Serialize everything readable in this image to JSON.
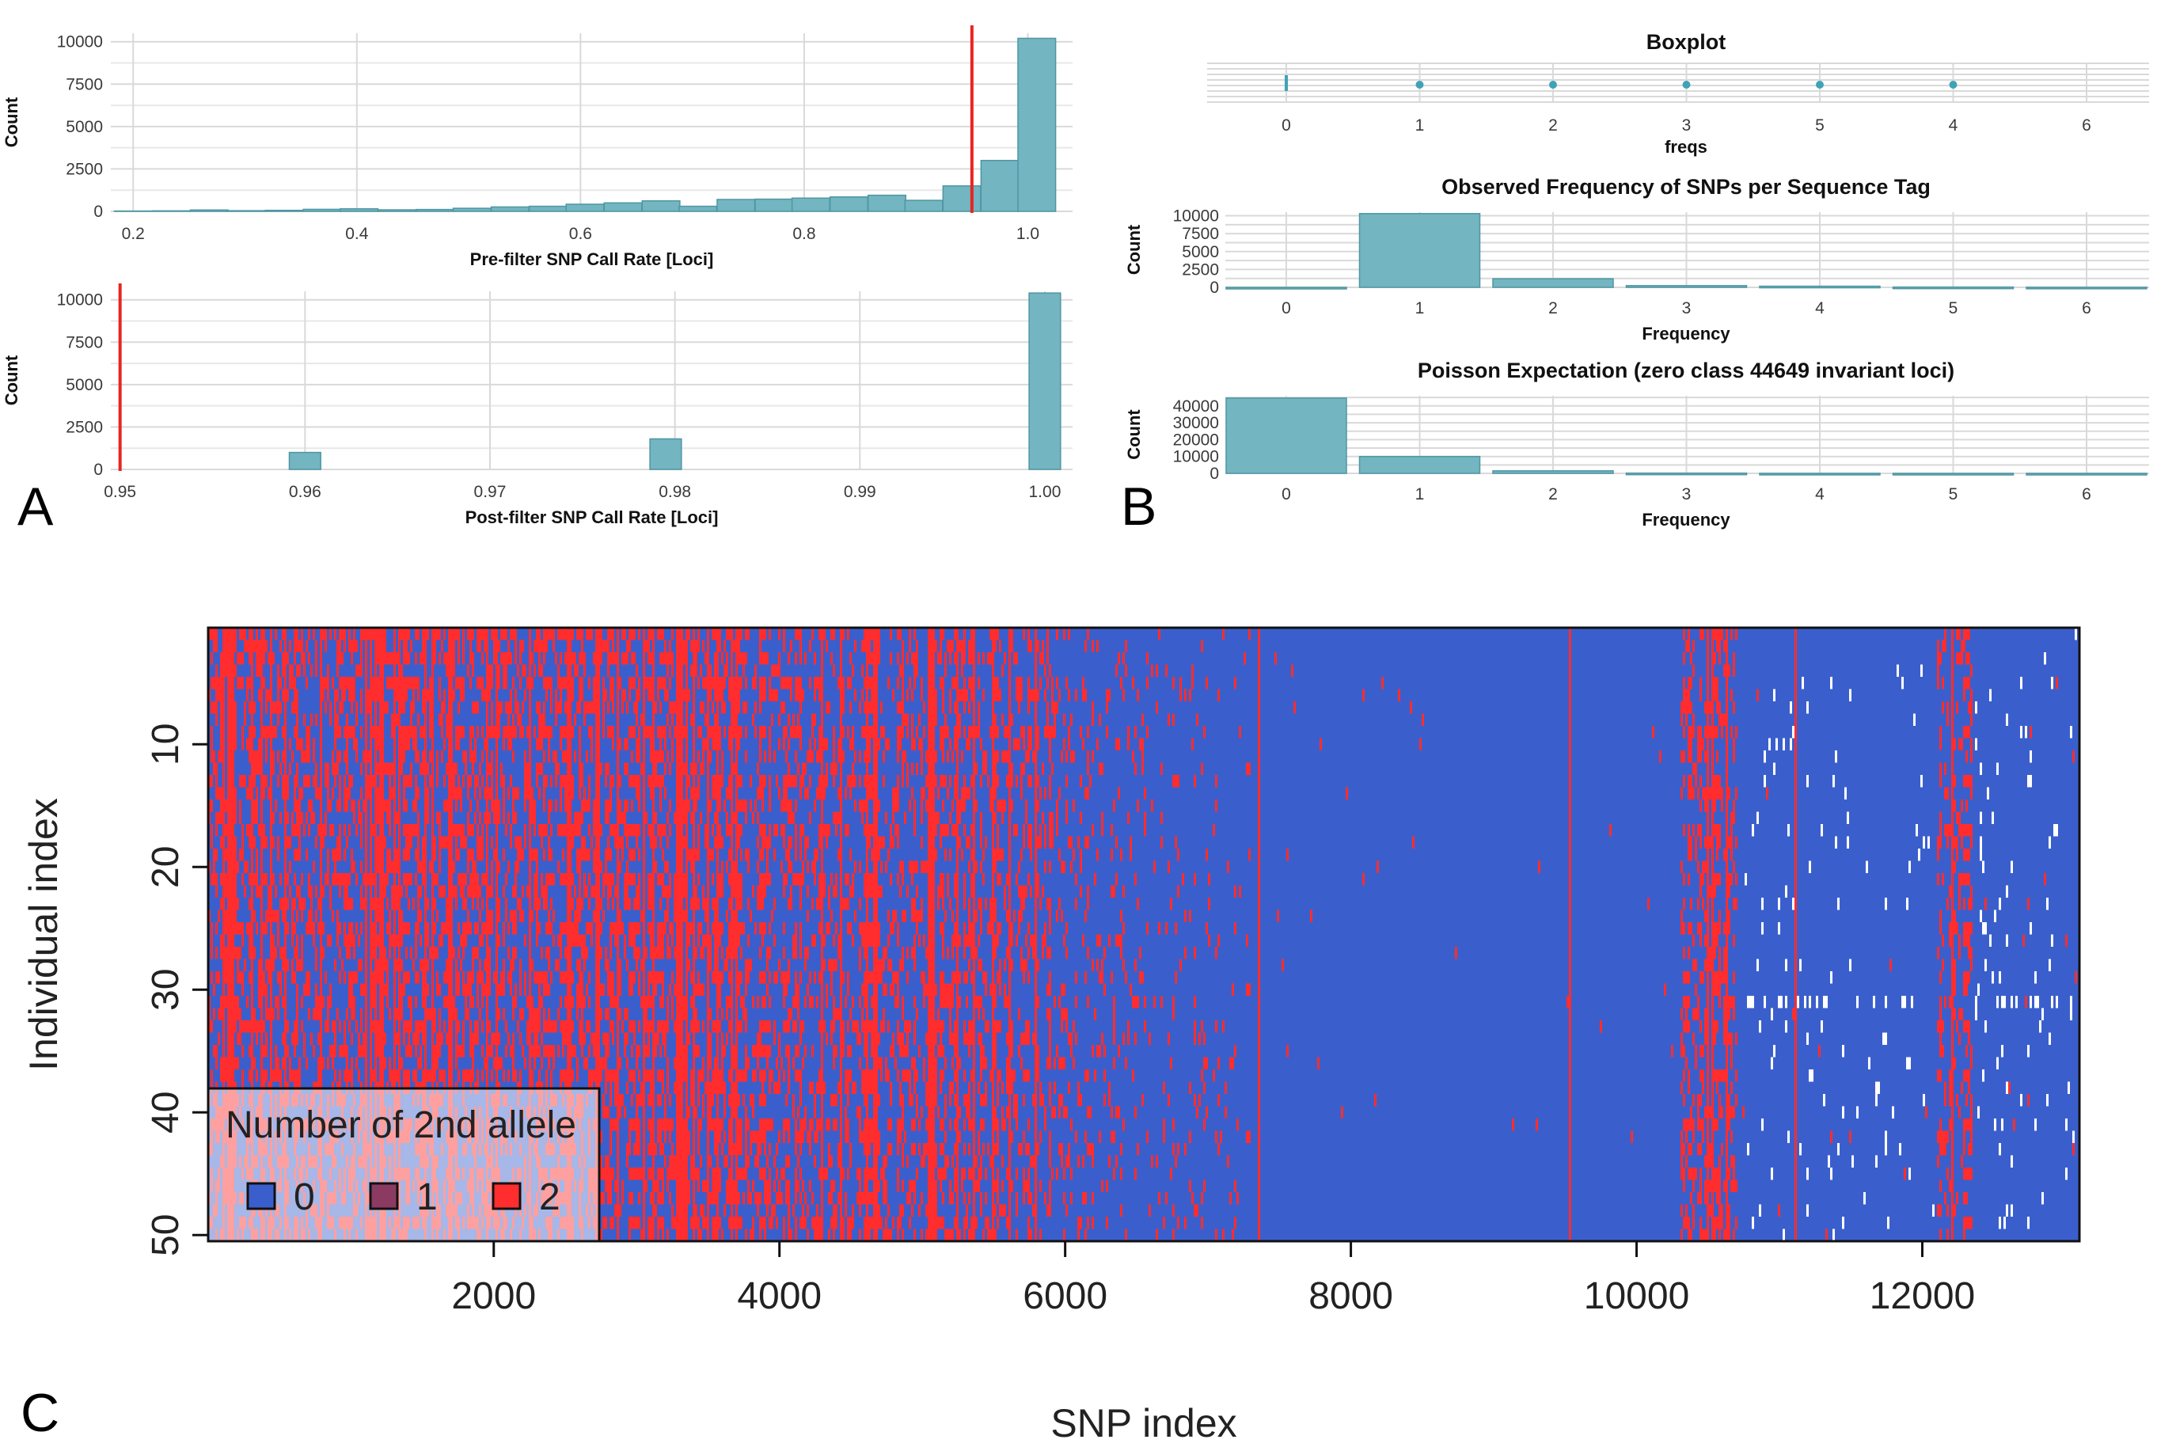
{
  "panels": {
    "A": "A",
    "B": "B",
    "C": "C"
  },
  "colors": {
    "bar_fill": "#73b5c1",
    "threshold_line": "#e8251f",
    "allele_0": "#3a5fcd",
    "allele_1": "#8b3a62",
    "allele_2": "#ff2d2d"
  },
  "chart_data": [
    {
      "id": "A1",
      "type": "bar",
      "title": "",
      "xlabel": "Pre-filter SNP Call Rate [Loci]",
      "ylabel": "Count",
      "xlim": [
        0.18,
        1.04
      ],
      "ylim": [
        0,
        10500
      ],
      "x_ticks": [
        "0.2",
        "0.4",
        "0.6",
        "0.8",
        "1.0"
      ],
      "y_ticks": [
        "0",
        "2500",
        "5000",
        "7500",
        "10000"
      ],
      "threshold": 0.95,
      "bin_width": 0.0337,
      "bins": [
        0.2,
        0.234,
        0.268,
        0.301,
        0.335,
        0.369,
        0.402,
        0.436,
        0.47,
        0.503,
        0.537,
        0.571,
        0.604,
        0.638,
        0.672,
        0.705,
        0.739,
        0.773,
        0.806,
        0.84,
        0.874,
        0.907,
        0.941,
        0.975,
        1.008
      ],
      "values": [
        20,
        30,
        80,
        40,
        60,
        120,
        150,
        90,
        110,
        180,
        260,
        300,
        420,
        500,
        620,
        300,
        700,
        720,
        780,
        850,
        950,
        650,
        1500,
        3000,
        10200
      ]
    },
    {
      "id": "A2",
      "type": "bar",
      "title": "",
      "xlabel": "Post-filter SNP Call Rate [Loci]",
      "ylabel": "Count",
      "xlim": [
        0.9495,
        1.0015
      ],
      "ylim": [
        0,
        10500
      ],
      "x_ticks": [
        "0.95",
        "0.96",
        "0.97",
        "0.98",
        "0.99",
        "1.00"
      ],
      "y_ticks": [
        "0",
        "2500",
        "5000",
        "7500",
        "10000"
      ],
      "threshold": 0.95,
      "bin_width": 0.0017,
      "bins": [
        0.96,
        0.9795,
        1.0
      ],
      "values": [
        1000,
        1800,
        10400
      ]
    },
    {
      "id": "B1",
      "type": "scatter",
      "title": "Boxplot",
      "xlabel": "freqs",
      "ylabel": "",
      "x_ticks": [
        "0",
        "1",
        "2",
        "3",
        "5",
        "4",
        "6"
      ]
    },
    {
      "id": "B2",
      "type": "bar",
      "title": "Observed Frequency of SNPs per Sequence Tag",
      "xlabel": "Frequency",
      "ylabel": "Count",
      "ylim": [
        0,
        10500
      ],
      "categories": [
        "0",
        "1",
        "2",
        "3",
        "4",
        "5",
        "6"
      ],
      "values": [
        0,
        10300,
        1200,
        240,
        160,
        40,
        20
      ],
      "y_ticks": [
        "0",
        "2500",
        "5000",
        "7500",
        "10000"
      ]
    },
    {
      "id": "B3",
      "type": "bar",
      "title": "Poisson Expectation (zero class 44649 invariant loci)",
      "xlabel": "Frequency",
      "ylabel": "Count",
      "ylim": [
        0,
        46000
      ],
      "categories": [
        "0",
        "1",
        "2",
        "3",
        "4",
        "5",
        "6"
      ],
      "values": [
        44649,
        10000,
        1500,
        150,
        20,
        2,
        0
      ],
      "y_ticks": [
        "0",
        "10000",
        "20000",
        "30000",
        "40000"
      ]
    },
    {
      "id": "C",
      "type": "heatmap",
      "title": "",
      "xlabel": "SNP index",
      "ylabel": "Individual index",
      "xlim": [
        1,
        13100
      ],
      "ylim": [
        1,
        50
      ],
      "x_ticks": [
        "2000",
        "4000",
        "6000",
        "8000",
        "10000",
        "12000"
      ],
      "y_ticks": [
        "10",
        "20",
        "30",
        "40",
        "50"
      ],
      "legend": {
        "title": "Number of 2nd allele",
        "items": [
          "0",
          "1",
          "2"
        ],
        "placement": "bottom-left"
      }
    }
  ]
}
